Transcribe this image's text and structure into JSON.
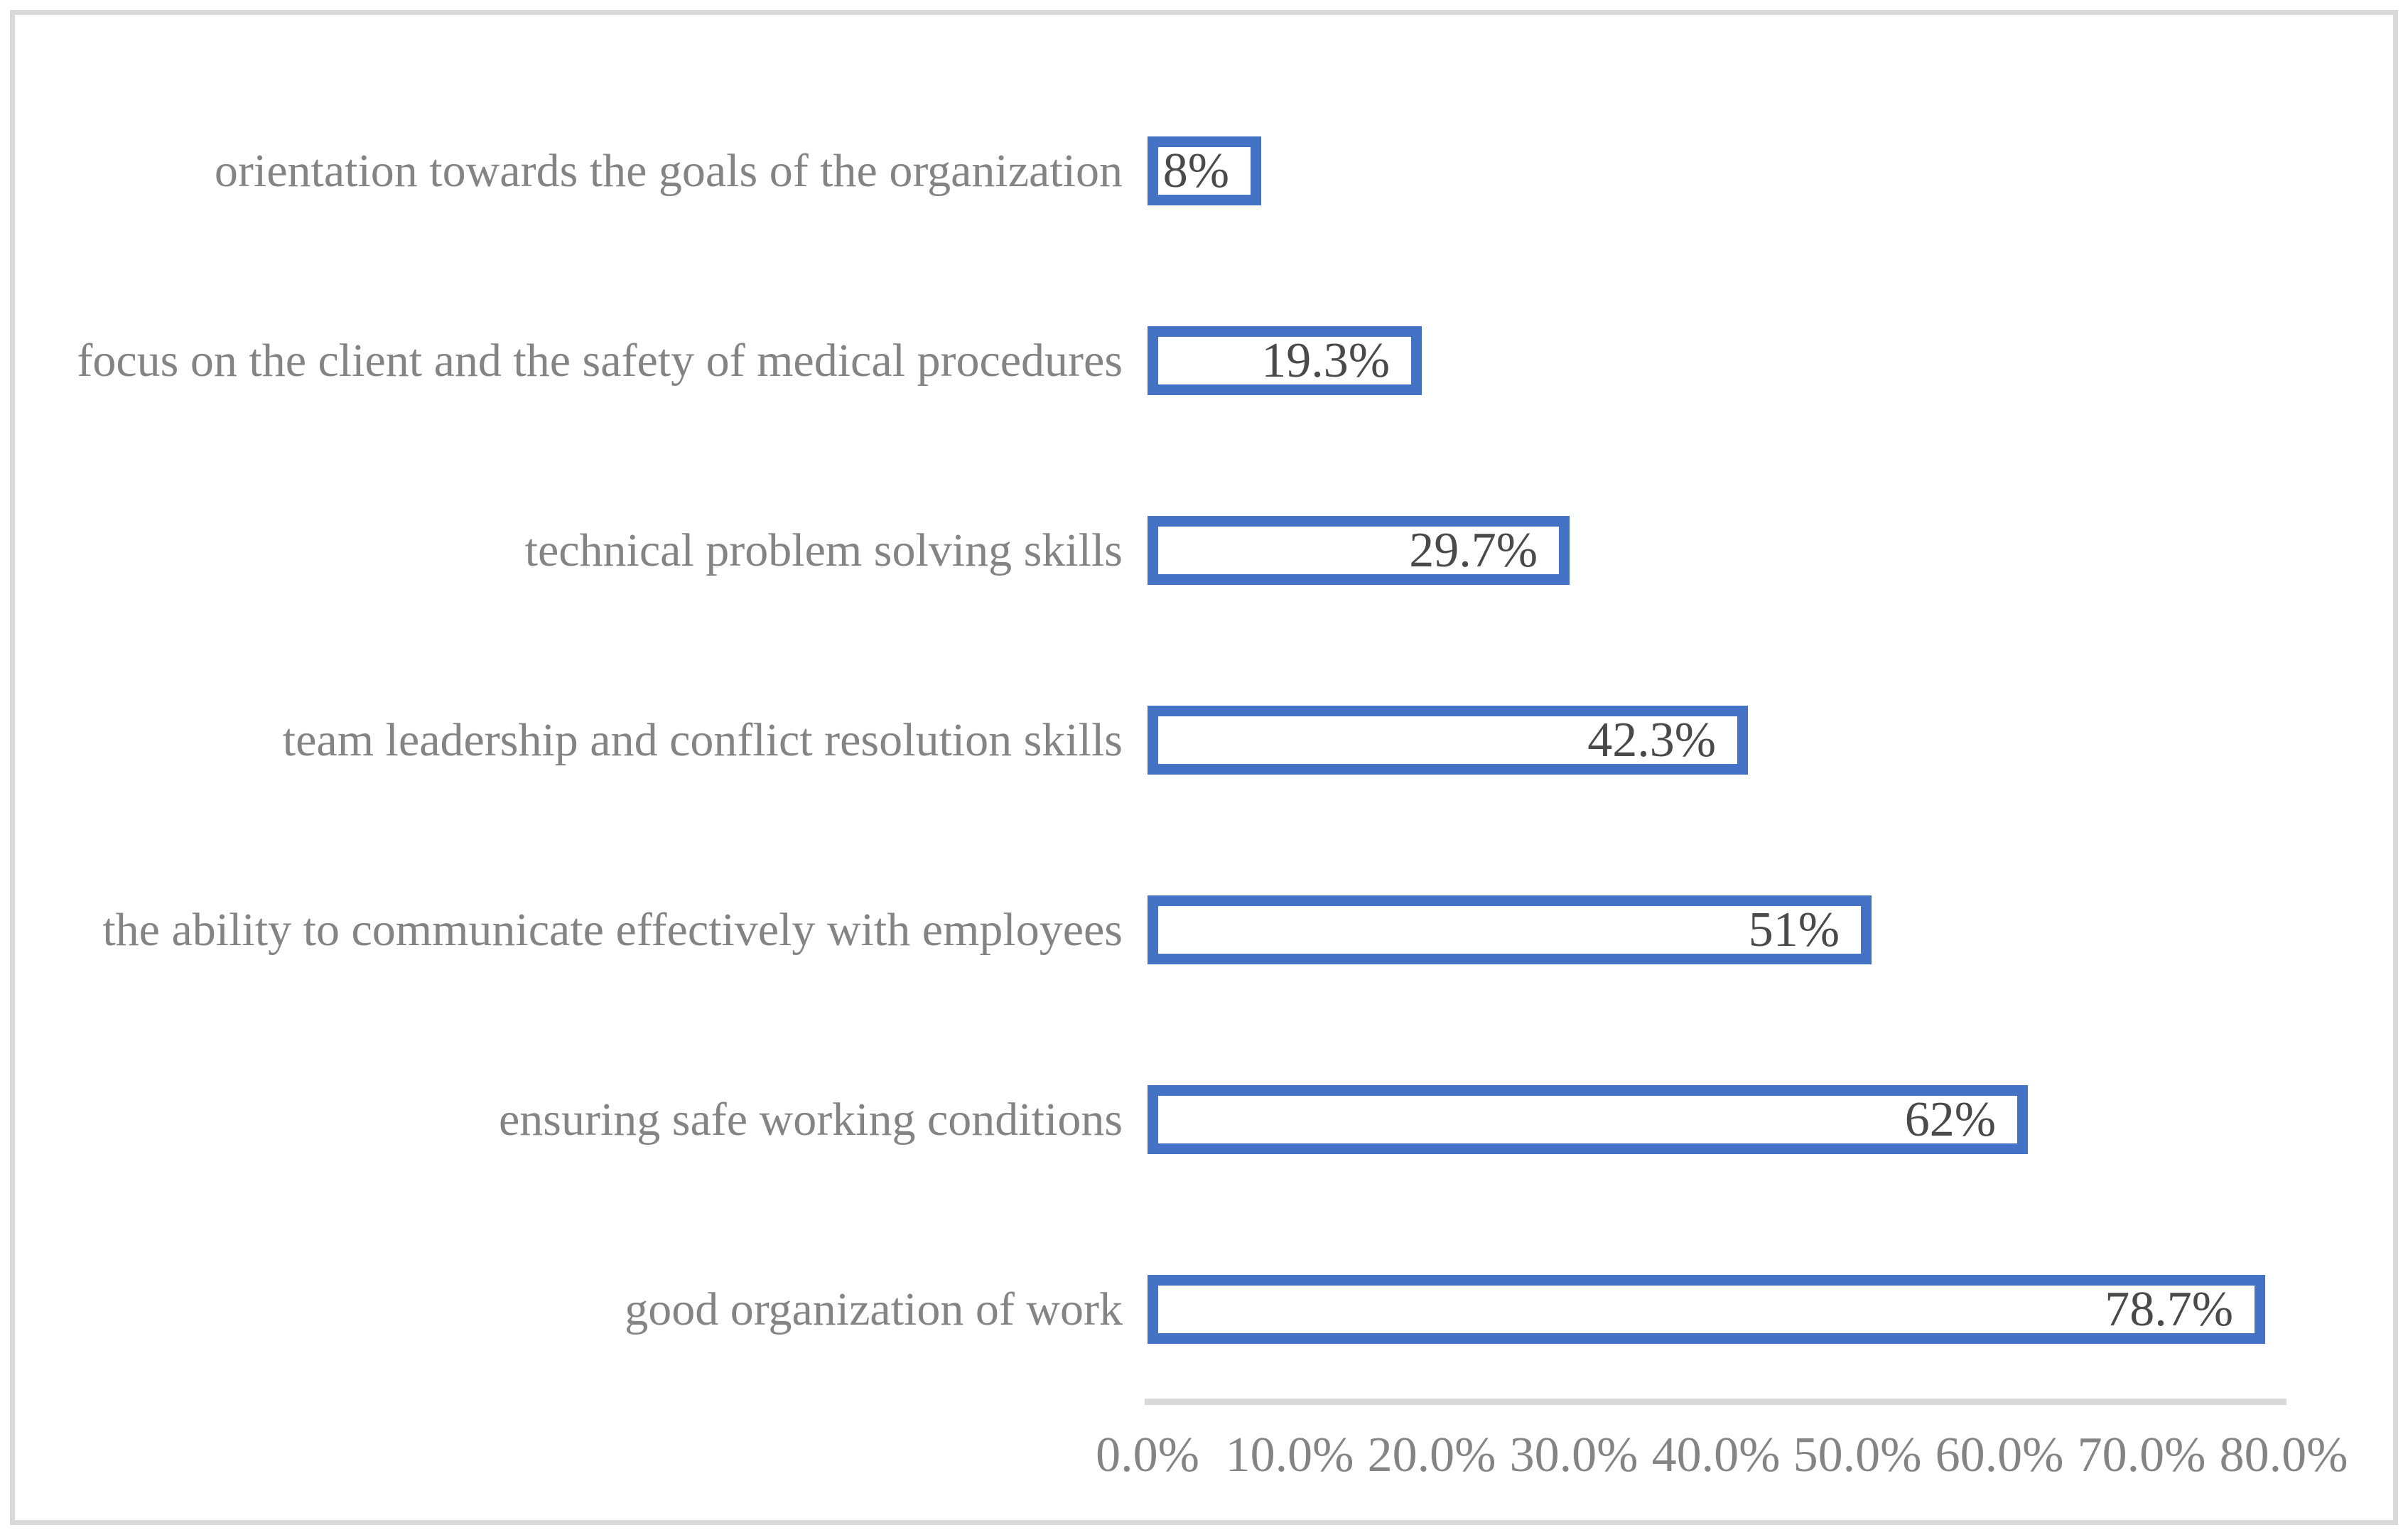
{
  "chart_data": {
    "type": "bar",
    "orientation": "horizontal",
    "title": "",
    "categories_order": "top-to-bottom",
    "categories": [
      "orientation towards the goals of the organization",
      "focus on the client and the safety of medical procedures",
      "technical problem solving skills",
      "team leadership and conflict resolution skills",
      "the ability to communicate effectively with employees",
      "ensuring safe working conditions",
      "good organization of work"
    ],
    "values": [
      8,
      19.3,
      29.7,
      42.3,
      51,
      62,
      78.7
    ],
    "value_labels": [
      "8%",
      "19.3%",
      "29.7%",
      "42.3%",
      "51%",
      "62%",
      "78.7%"
    ],
    "x_axis": {
      "min": 0,
      "max": 80,
      "tick_step": 10,
      "tick_labels": [
        "0.0%",
        "10.0%",
        "20.0%",
        "30.0%",
        "40.0%",
        "50.0%",
        "60.0%",
        "70.0%",
        "80.0%"
      ]
    },
    "grid": false,
    "legend": false,
    "colors": {
      "bar_border": "#4472C4",
      "bar_fill": "#FFFFFF",
      "category_label": "#848484",
      "tick_label": "#848484",
      "value_label": "#4A4A4A",
      "axis_line": "#D9D9D9",
      "page_border": "#D9D9D9",
      "background": "#FFFFFF"
    }
  }
}
